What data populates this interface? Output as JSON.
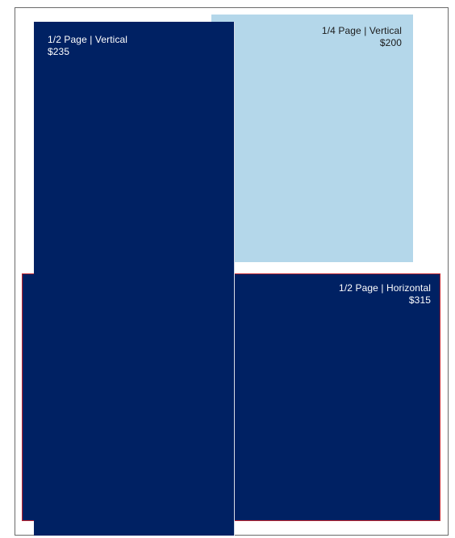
{
  "ads": {
    "half_vertical": {
      "title": "1/2 Page | Vertical",
      "price": "$235",
      "background_color": "#002163"
    },
    "quarter_vertical": {
      "title": "1/4 Page | Vertical",
      "price": "$200",
      "background_color": "#b4d7ea"
    },
    "half_horizontal": {
      "title": "1/2 Page | Horizontal",
      "price": "$315",
      "background_color": "#002163",
      "border_color": "#c0242e"
    }
  }
}
